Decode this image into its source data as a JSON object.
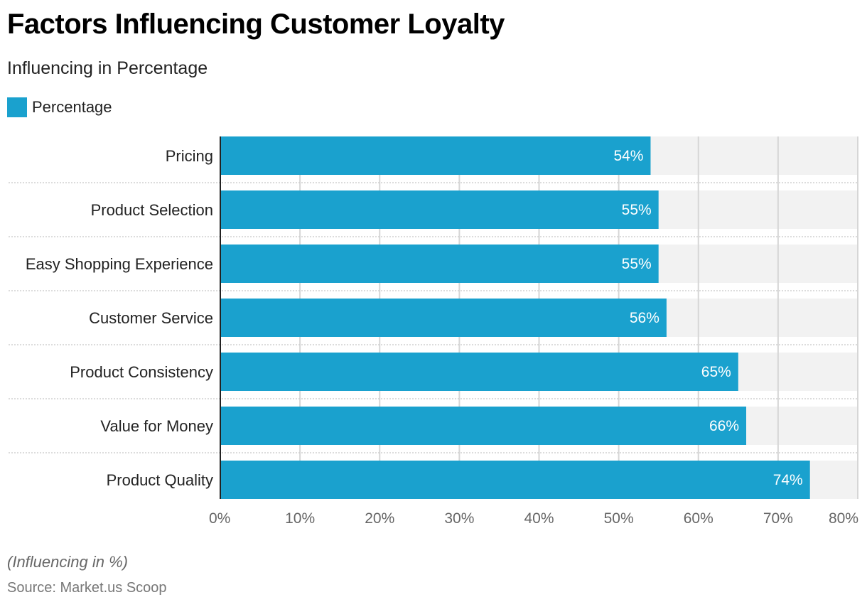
{
  "header": {
    "title": "Factors Influencing Customer Loyalty",
    "subtitle": "Influencing in Percentage"
  },
  "legend": {
    "items": [
      {
        "label": "Percentage",
        "color": "#1aa1ce"
      }
    ]
  },
  "footer": {
    "note": "(Influencing in %)",
    "source": "Source: Market.us Scoop"
  },
  "colors": {
    "bar": "#1aa1ce",
    "track": "#f2f2f2",
    "gridline": "#d6d6d6",
    "axis": "#222222"
  },
  "chart_data": {
    "type": "bar",
    "orientation": "horizontal",
    "title": "Factors Influencing Customer Loyalty",
    "subtitle": "Influencing in Percentage",
    "xlabel": "",
    "ylabel": "",
    "categories": [
      "Pricing",
      "Product Selection",
      "Easy Shopping Experience",
      "Customer Service",
      "Product Consistency",
      "Value for Money",
      "Product Quality"
    ],
    "series": [
      {
        "name": "Percentage",
        "values": [
          54,
          55,
          55,
          56,
          65,
          66,
          74
        ]
      }
    ],
    "data_labels": [
      "54%",
      "55%",
      "55%",
      "56%",
      "65%",
      "66%",
      "74%"
    ],
    "xlim": [
      0,
      80
    ],
    "x_ticks": [
      0,
      10,
      20,
      30,
      40,
      50,
      60,
      70,
      80
    ],
    "x_tick_labels": [
      "0%",
      "10%",
      "20%",
      "30%",
      "40%",
      "50%",
      "60%",
      "70%",
      "80%"
    ],
    "grid": true,
    "legend_position": "top-left"
  }
}
